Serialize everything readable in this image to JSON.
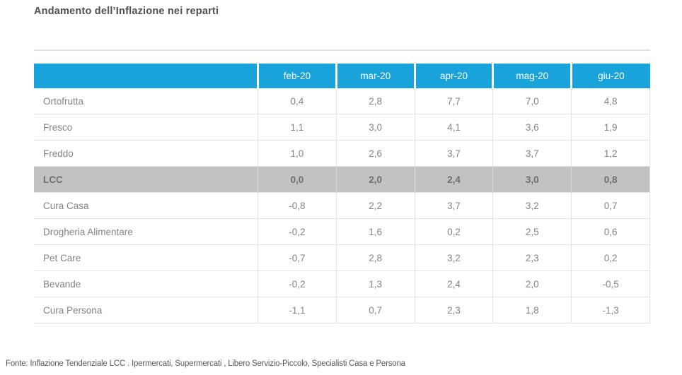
{
  "title": "Andamento dell’Inflazione nei reparti",
  "footer": "Fonte: Inflazione Tendenziale LCC . Ipermercati, Supermercati , Libero Servizio-Piccolo, Specialisti Casa e Persona",
  "colors": {
    "header_bg": "#18a4db",
    "header_text": "#ffffff",
    "highlight_row_bg": "#c2c2c2",
    "highlight_row_text": "#6e6f71",
    "body_text": "#828487",
    "grid_border": "#e2e2e2",
    "title_text": "#4f5052"
  },
  "table": {
    "columns": [
      "feb-20",
      "mar-20",
      "apr-20",
      "mag-20",
      "giu-20"
    ],
    "rows": [
      {
        "label": "Ortofrutta",
        "cells": [
          "0,4",
          "2,8",
          "7,7",
          "7,0",
          "4,8"
        ],
        "highlight": false
      },
      {
        "label": "Fresco",
        "cells": [
          "1,1",
          "3,0",
          "4,1",
          "3,6",
          "1,9"
        ],
        "highlight": false
      },
      {
        "label": "Freddo",
        "cells": [
          "1,0",
          "2,6",
          "3,7",
          "3,7",
          "1,2"
        ],
        "highlight": false
      },
      {
        "label": "LCC",
        "cells": [
          "0,0",
          "2,0",
          "2,4",
          "3,0",
          "0,8"
        ],
        "highlight": true
      },
      {
        "label": "Cura Casa",
        "cells": [
          "-0,8",
          "2,2",
          "3,7",
          "3,2",
          "0,7"
        ],
        "highlight": false
      },
      {
        "label": "Drogheria Alimentare",
        "cells": [
          "-0,2",
          "1,6",
          "0,2",
          "2,5",
          "0,6"
        ],
        "highlight": false
      },
      {
        "label": "Pet Care",
        "cells": [
          "-0,7",
          "2,8",
          "3,2",
          "2,3",
          "0,2"
        ],
        "highlight": false
      },
      {
        "label": "Bevande",
        "cells": [
          "-0,2",
          "1,3",
          "2,4",
          "2,0",
          "-0,5"
        ],
        "highlight": false
      },
      {
        "label": "Cura Persona",
        "cells": [
          "-1,1",
          "0,7",
          "2,3",
          "1,8",
          "-1,3"
        ],
        "highlight": false
      }
    ]
  },
  "chart_data": {
    "type": "table",
    "title": "Andamento dell’Inflazione nei reparti",
    "columns": [
      "feb-20",
      "mar-20",
      "apr-20",
      "mag-20",
      "giu-20"
    ],
    "rows": [
      {
        "label": "Ortofrutta",
        "values": [
          0.4,
          2.8,
          7.7,
          7.0,
          4.8
        ]
      },
      {
        "label": "Fresco",
        "values": [
          1.1,
          3.0,
          4.1,
          3.6,
          1.9
        ]
      },
      {
        "label": "Freddo",
        "values": [
          1.0,
          2.6,
          3.7,
          3.7,
          1.2
        ]
      },
      {
        "label": "LCC",
        "values": [
          0.0,
          2.0,
          2.4,
          3.0,
          0.8
        ]
      },
      {
        "label": "Cura Casa",
        "values": [
          -0.8,
          2.2,
          3.7,
          3.2,
          0.7
        ]
      },
      {
        "label": "Drogheria Alimentare",
        "values": [
          -0.2,
          1.6,
          0.2,
          2.5,
          0.6
        ]
      },
      {
        "label": "Pet Care",
        "values": [
          -0.7,
          2.8,
          3.2,
          2.3,
          0.2
        ]
      },
      {
        "label": "Bevande",
        "values": [
          -0.2,
          1.3,
          2.4,
          2.0,
          -0.5
        ]
      },
      {
        "label": "Cura Persona",
        "values": [
          -1.1,
          0.7,
          2.3,
          1.8,
          -1.3
        ]
      }
    ],
    "highlighted_row": "LCC",
    "note": "Fonte: Inflazione Tendenziale LCC . Ipermercati, Supermercati , Libero Servizio-Piccolo, Specialisti Casa e Persona"
  }
}
